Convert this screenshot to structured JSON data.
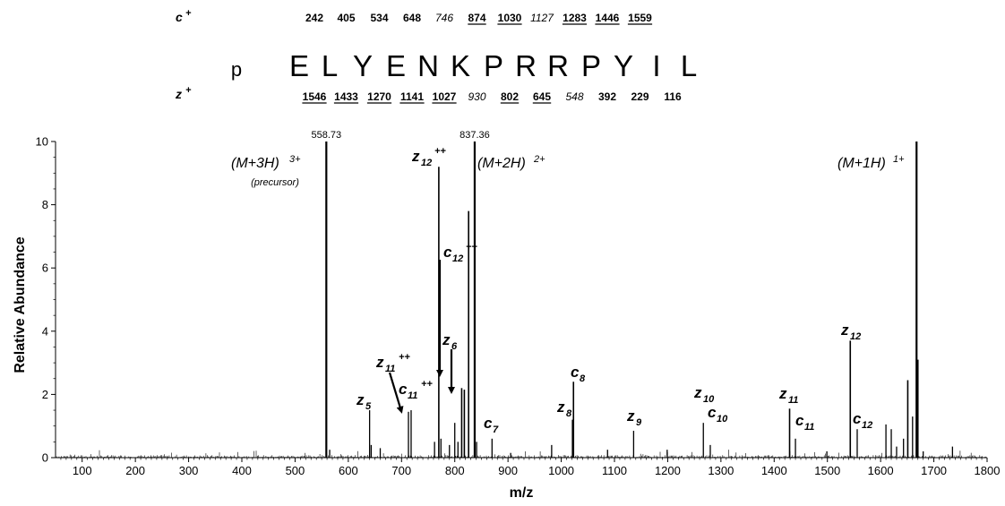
{
  "sequence": {
    "prefix": "p",
    "residues": [
      "E",
      "L",
      "Y",
      "E",
      "N",
      "K",
      "P",
      "R",
      "R",
      "P",
      "Y",
      "I",
      "L"
    ],
    "c_ion_label": "c",
    "z_ion_label": "z",
    "ion_charge": "+",
    "c_ions": [
      {
        "value": "242",
        "style": "bold",
        "pos": 1
      },
      {
        "value": "405",
        "style": "bold",
        "pos": 2
      },
      {
        "value": "534",
        "style": "bold",
        "pos": 3
      },
      {
        "value": "648",
        "style": "bold",
        "pos": 4
      },
      {
        "value": "746",
        "style": "italic",
        "pos": 5
      },
      {
        "value": "874",
        "style": "underline",
        "pos": 6
      },
      {
        "value": "1030",
        "style": "underline",
        "pos": 7
      },
      {
        "value": "1127",
        "style": "italic",
        "pos": 8
      },
      {
        "value": "1283",
        "style": "underline",
        "pos": 9
      },
      {
        "value": "1446",
        "style": "underline",
        "pos": 10
      },
      {
        "value": "1559",
        "style": "underline",
        "pos": 11
      }
    ],
    "z_ions": [
      {
        "value": "1546",
        "style": "underline",
        "pos": 1
      },
      {
        "value": "1433",
        "style": "underline",
        "pos": 2
      },
      {
        "value": "1270",
        "style": "underline",
        "pos": 3
      },
      {
        "value": "1141",
        "style": "underline",
        "pos": 4
      },
      {
        "value": "1027",
        "style": "underline",
        "pos": 5
      },
      {
        "value": "930",
        "style": "italic",
        "pos": 6
      },
      {
        "value": "802",
        "style": "underline",
        "pos": 7
      },
      {
        "value": "645",
        "style": "underline",
        "pos": 8
      },
      {
        "value": "548",
        "style": "italic",
        "pos": 9
      },
      {
        "value": "392",
        "style": "bold",
        "pos": 10
      },
      {
        "value": "229",
        "style": "bold",
        "pos": 11
      },
      {
        "value": "116",
        "style": "bold",
        "pos": 12
      }
    ]
  },
  "chart_data": {
    "type": "bar",
    "xlabel": "m/z",
    "ylabel": "Relative Abundance",
    "xlim": [
      50,
      1800
    ],
    "ylim": [
      0,
      10
    ],
    "x_ticks": [
      100,
      200,
      300,
      400,
      500,
      600,
      700,
      800,
      900,
      1000,
      1100,
      1200,
      1300,
      1400,
      1500,
      1600,
      1700,
      1800
    ],
    "y_ticks": [
      0,
      2,
      4,
      6,
      8,
      10
    ],
    "color": "#000000",
    "peaks": [
      {
        "mz": 558.7,
        "y": 10.0
      },
      {
        "mz": 565,
        "y": 0.25
      },
      {
        "mz": 640,
        "y": 1.5
      },
      {
        "mz": 643,
        "y": 0.4
      },
      {
        "mz": 660,
        "y": 0.3
      },
      {
        "mz": 713,
        "y": 1.45
      },
      {
        "mz": 718,
        "y": 1.5
      },
      {
        "mz": 762,
        "y": 0.5
      },
      {
        "mz": 770,
        "y": 9.2
      },
      {
        "mz": 774,
        "y": 0.6
      },
      {
        "mz": 790,
        "y": 0.4
      },
      {
        "mz": 800,
        "y": 1.1
      },
      {
        "mz": 806,
        "y": 0.5
      },
      {
        "mz": 813,
        "y": 2.2
      },
      {
        "mz": 818,
        "y": 2.15
      },
      {
        "mz": 826,
        "y": 7.8
      },
      {
        "mz": 837.4,
        "y": 10.0
      },
      {
        "mz": 841,
        "y": 0.5
      },
      {
        "mz": 870,
        "y": 0.6
      },
      {
        "mz": 905,
        "y": 0.15
      },
      {
        "mz": 982,
        "y": 0.4
      },
      {
        "mz": 1021,
        "y": 1.2
      },
      {
        "mz": 1023,
        "y": 2.4
      },
      {
        "mz": 1087,
        "y": 0.25
      },
      {
        "mz": 1136,
        "y": 0.85
      },
      {
        "mz": 1199,
        "y": 0.25
      },
      {
        "mz": 1267,
        "y": 1.1
      },
      {
        "mz": 1280,
        "y": 0.4
      },
      {
        "mz": 1429,
        "y": 1.55
      },
      {
        "mz": 1440,
        "y": 0.6
      },
      {
        "mz": 1499,
        "y": 0.2
      },
      {
        "mz": 1543,
        "y": 3.7
      },
      {
        "mz": 1556,
        "y": 0.9
      },
      {
        "mz": 1610,
        "y": 1.05
      },
      {
        "mz": 1620,
        "y": 0.9
      },
      {
        "mz": 1630,
        "y": 0.35
      },
      {
        "mz": 1643,
        "y": 0.6
      },
      {
        "mz": 1651,
        "y": 2.45
      },
      {
        "mz": 1660,
        "y": 1.3
      },
      {
        "mz": 1667.5,
        "y": 10.0
      },
      {
        "mz": 1670,
        "y": 3.1
      },
      {
        "mz": 1680,
        "y": 0.2
      },
      {
        "mz": 1735,
        "y": 0.35
      }
    ],
    "mass_labels": [
      {
        "text": "558.73",
        "mz": 558.7
      },
      {
        "text": "837.36",
        "mz": 837.4
      }
    ],
    "precursor_annotations": [
      {
        "main": "(M+3H)",
        "sup": "3+",
        "sub": "(precursor)"
      },
      {
        "main": "(M+2H)",
        "sup": "2+"
      },
      {
        "main": "(M+1H)",
        "sup": "1+"
      }
    ],
    "ion_annotations": [
      {
        "ion": "z",
        "num": "5"
      },
      {
        "ion": "z",
        "num": "11",
        "charge": "++"
      },
      {
        "ion": "c",
        "num": "11",
        "charge": "++"
      },
      {
        "ion": "z",
        "num": "12",
        "charge": "++"
      },
      {
        "ion": "c",
        "num": "12",
        "charge": "++"
      },
      {
        "ion": "z",
        "num": "6"
      },
      {
        "ion": "c",
        "num": "7"
      },
      {
        "ion": "z",
        "num": "8"
      },
      {
        "ion": "c",
        "num": "8"
      },
      {
        "ion": "z",
        "num": "9"
      },
      {
        "ion": "z",
        "num": "10"
      },
      {
        "ion": "c",
        "num": "10"
      },
      {
        "ion": "z",
        "num": "11"
      },
      {
        "ion": "c",
        "num": "11"
      },
      {
        "ion": "z",
        "num": "12"
      },
      {
        "ion": "c",
        "num": "12"
      }
    ]
  }
}
